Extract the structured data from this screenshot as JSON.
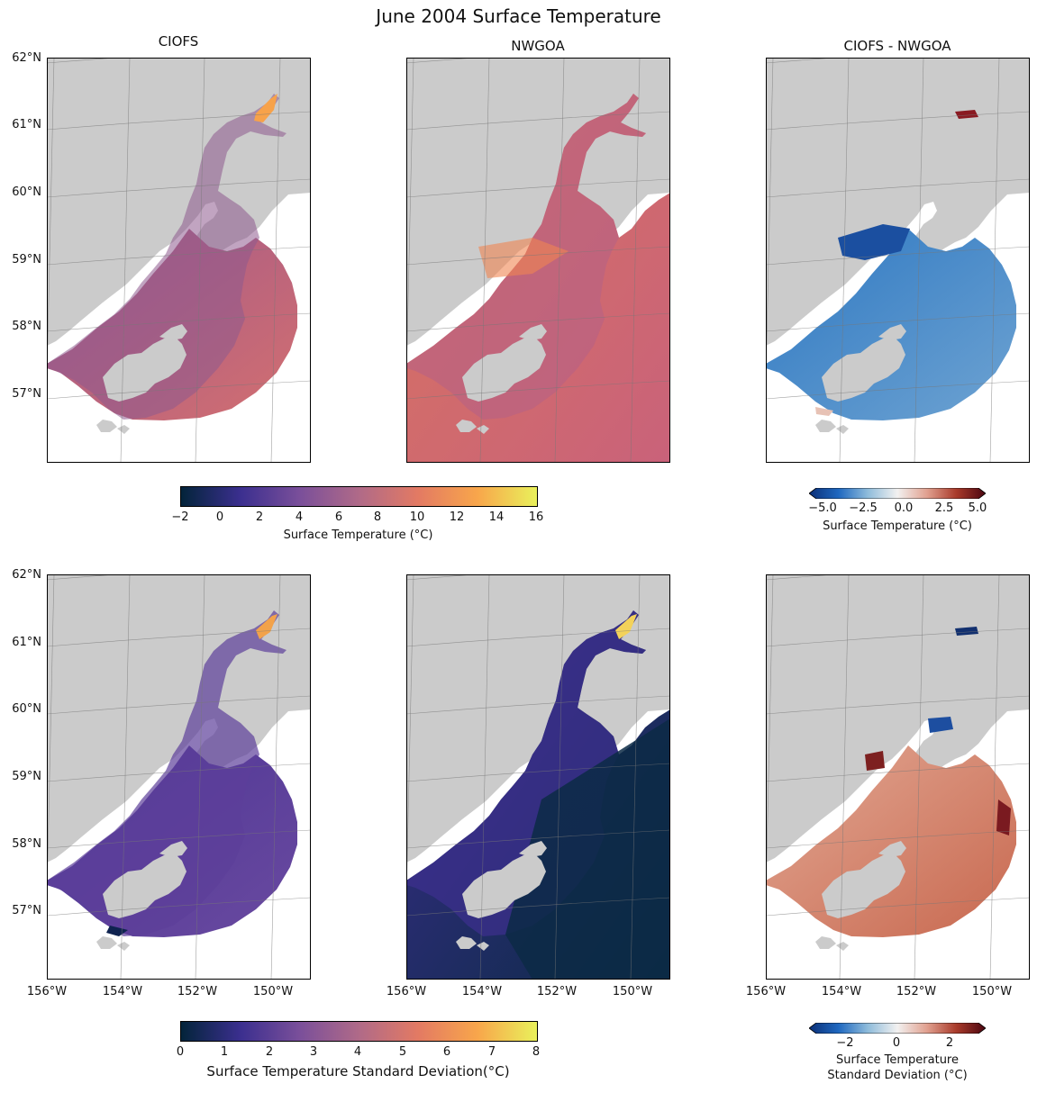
{
  "title": "June 2004 Surface Temperature",
  "panels": {
    "ciofs": "CIOFS",
    "nwgoa": "NWGOA",
    "diff": "CIOFS - NWGOA"
  },
  "lat_labels": [
    "62°N",
    "61°N",
    "60°N",
    "59°N",
    "58°N",
    "57°N"
  ],
  "lon_labels": [
    "156°W",
    "154°W",
    "152°W",
    "150°W"
  ],
  "colorbars": {
    "temp": {
      "label": "Surface Temperature (°C)",
      "ticks": [
        "−2",
        "0",
        "2",
        "4",
        "6",
        "8",
        "10",
        "12",
        "14",
        "16"
      ],
      "colors": [
        "#03243a",
        "#3b2f8f",
        "#7a4f9a",
        "#b06a88",
        "#e37a63",
        "#f8a64b",
        "#e9f15b"
      ]
    },
    "temp_diff": {
      "label": "Surface Temperature (°C)",
      "ticks": [
        "−5.0",
        "−2.5",
        "0.0",
        "2.5",
        "5.0"
      ],
      "colors": [
        "#0b2f77",
        "#1f68c0",
        "#8fbcdb",
        "#f2f1f0",
        "#e1a190",
        "#a93b2b",
        "#4b0510"
      ]
    },
    "std": {
      "label": "Surface Temperature Standard Deviation(°C)",
      "ticks": [
        "0",
        "1",
        "2",
        "3",
        "4",
        "5",
        "6",
        "7",
        "8"
      ],
      "colors": [
        "#03243a",
        "#3b2f8f",
        "#7a4f9a",
        "#b06a88",
        "#e37a63",
        "#f8a64b",
        "#e9f15b"
      ]
    },
    "std_diff": {
      "label_line1": "Surface Temperature",
      "label_line2": "Standard Deviation (°C)",
      "ticks": [
        "−2",
        "0",
        "2"
      ],
      "colors": [
        "#0b2f77",
        "#1f68c0",
        "#8fbcdb",
        "#f2f1f0",
        "#e1a190",
        "#a93b2b",
        "#4b0510"
      ]
    }
  },
  "colors": {
    "land": "#cbcbcb",
    "ciofs_temp": "#9b5a86",
    "nwgoa_temp": "#e47b5c",
    "std_field": "#5a3a9a",
    "std_deep": "#0c2a45",
    "diff_blue": "#2f78c4",
    "diff_red": "#d88870"
  }
}
